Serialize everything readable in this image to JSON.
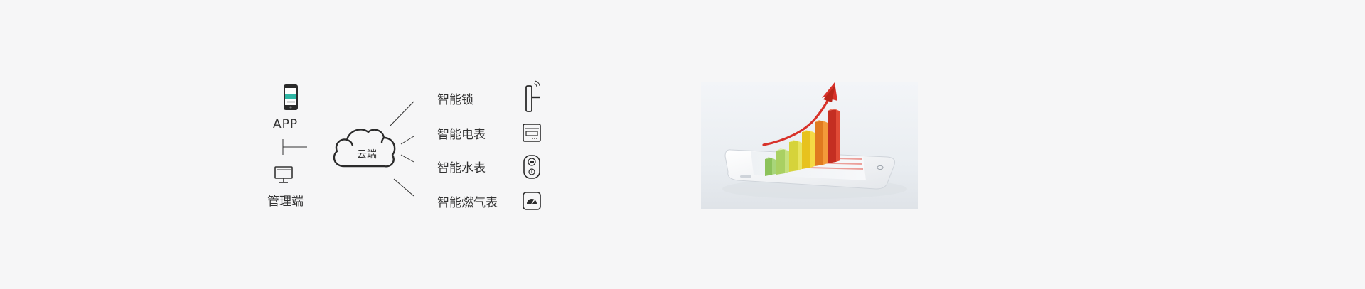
{
  "diagram": {
    "left_nodes": {
      "app": {
        "label": "APP",
        "icon": "smartphone-icon"
      },
      "admin": {
        "label": "管理端",
        "icon": "desktop-computer-icon"
      }
    },
    "cloud": {
      "label": "云端",
      "icon": "cloud-icon"
    },
    "devices": [
      {
        "label": "智能锁",
        "icon": "smart-lock-icon"
      },
      {
        "label": "智能电表",
        "icon": "electric-meter-icon"
      },
      {
        "label": "智能水表",
        "icon": "water-meter-icon"
      },
      {
        "label": "智能燃气表",
        "icon": "gas-meter-icon"
      }
    ]
  },
  "illustration": {
    "icon": "phone-growth-chart-illustration",
    "colors": {
      "arrow": "#d8322a",
      "bar_green": "#9ccf4e",
      "bar_yellow": "#f2d437",
      "bar_orange": "#f0942e",
      "bar_red": "#dd3a2a"
    }
  }
}
